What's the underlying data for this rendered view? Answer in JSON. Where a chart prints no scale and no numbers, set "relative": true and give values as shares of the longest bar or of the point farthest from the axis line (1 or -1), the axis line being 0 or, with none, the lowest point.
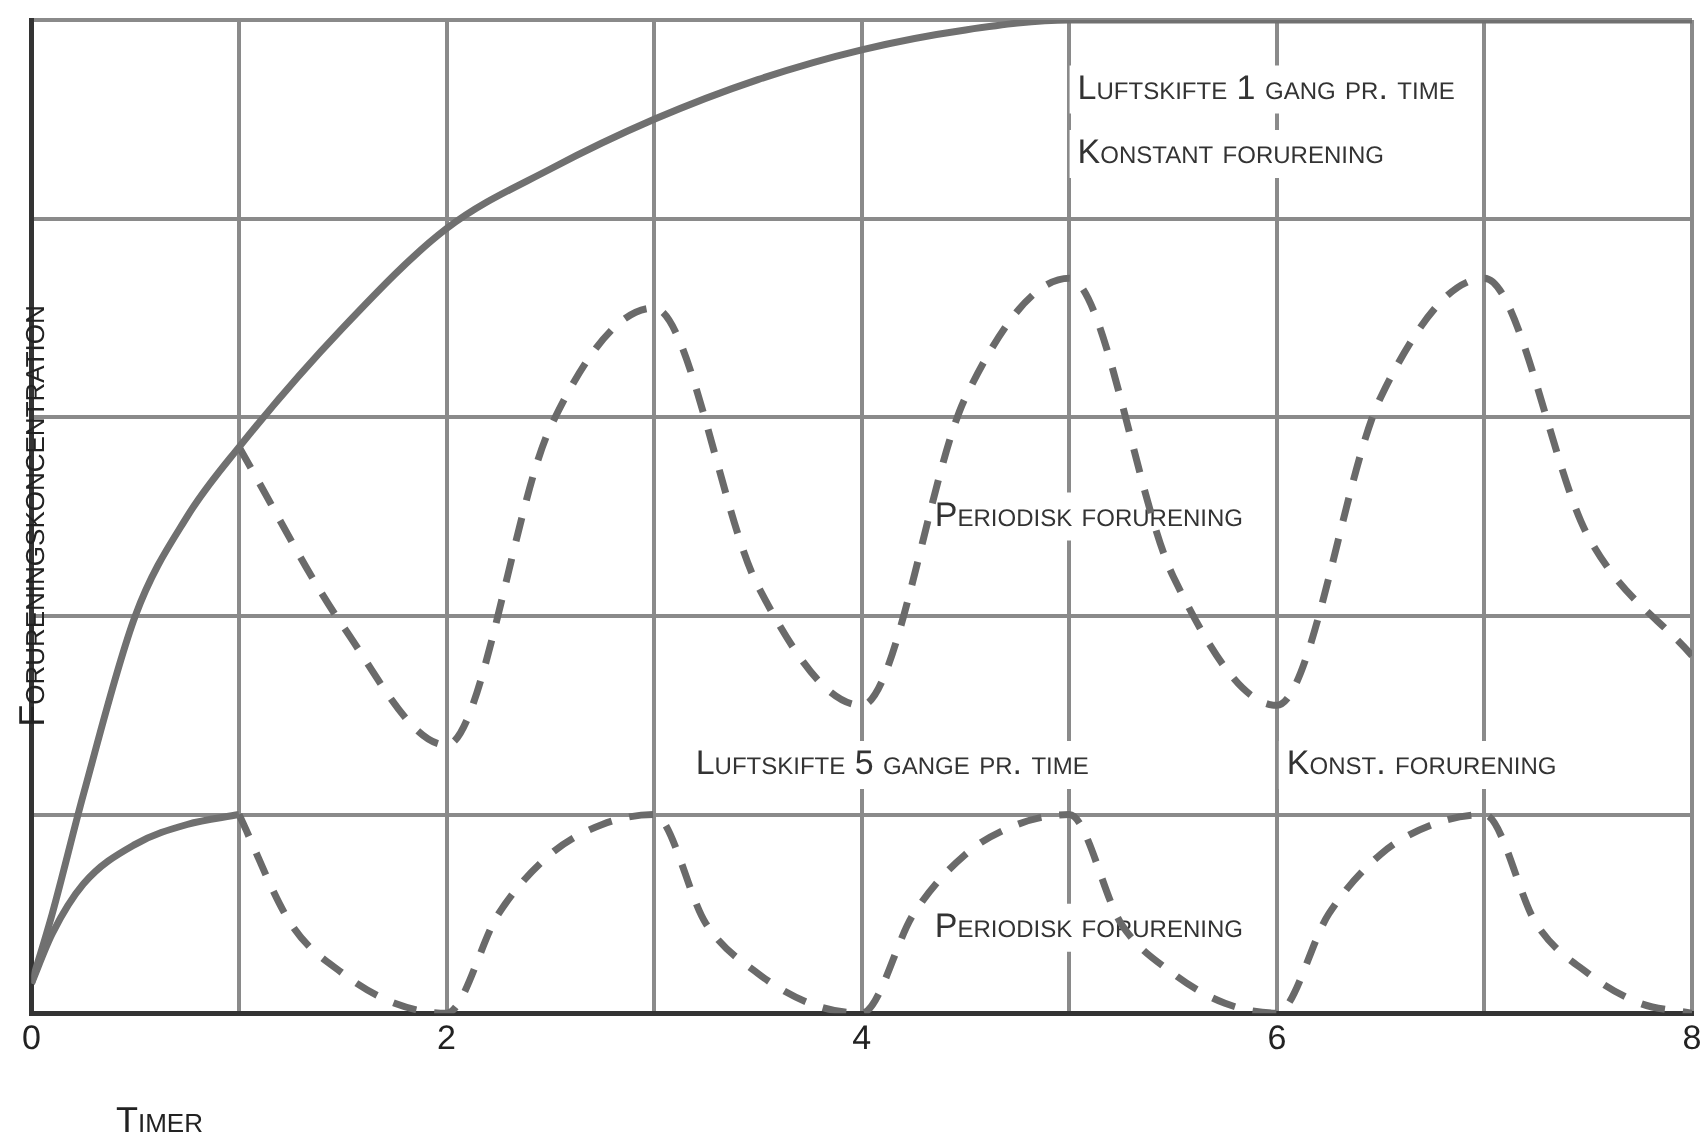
{
  "chart_data": {
    "type": "line",
    "relative": true,
    "xlabel": "Timer",
    "ylabel": "Forureningskoncentration",
    "xlim": [
      0,
      8
    ],
    "xticks": [
      0,
      {
        "value": 1,
        "label": null
      },
      2,
      {
        "value": 3,
        "label": null
      },
      4,
      {
        "value": 5,
        "label": null
      },
      6,
      {
        "value": 7,
        "label": null
      },
      8
    ],
    "grid": true,
    "legend": false,
    "marker": "none",
    "series": [
      {
        "color": "#707070",
        "line_style": "solid",
        "x": [
          0,
          0.1,
          0.25,
          0.5,
          0.75,
          1,
          1.5,
          2,
          2.5,
          3,
          3.5,
          4,
          4.5,
          5,
          6,
          7,
          8
        ],
        "values": [
          0.03,
          0.1,
          0.22,
          0.4,
          0.5,
          0.57,
          0.69,
          0.79,
          0.85,
          0.9,
          0.94,
          0.97,
          0.99,
          1,
          1,
          1,
          1
        ]
      },
      {
        "color": "#6a6a6a",
        "line_style": "dashed",
        "x": [
          1,
          1.5,
          2,
          2.5,
          3,
          3.5,
          4,
          4.5,
          5,
          5.5,
          6,
          6.5,
          7,
          7.5,
          8
        ],
        "values": [
          0.57,
          0.39,
          0.27,
          0.59,
          0.71,
          0.43,
          0.31,
          0.62,
          0.74,
          0.44,
          0.31,
          0.62,
          0.74,
          0.48,
          0.36
        ]
      },
      {
        "color": "#707070",
        "line_style": "solid",
        "x": [
          0,
          0.1,
          0.25,
          0.5,
          0.75,
          1
        ],
        "values": [
          0.03,
          0.08,
          0.13,
          0.17,
          0.19,
          0.2
        ]
      },
      {
        "color": "#6a6a6a",
        "line_style": "dashed",
        "x": [
          1,
          1.25,
          1.5,
          1.75,
          2,
          2.25,
          2.5,
          2.75,
          3,
          3.25,
          3.5,
          3.75,
          4,
          4.25,
          4.5,
          4.75,
          5,
          5.25,
          5.5,
          5.75,
          6,
          6.25,
          6.5,
          6.75,
          7,
          7.25,
          7.5,
          7.75,
          8
        ],
        "values": [
          0.2,
          0.09,
          0.04,
          0.01,
          0,
          0.1,
          0.16,
          0.19,
          0.2,
          0.09,
          0.04,
          0.01,
          0,
          0.1,
          0.16,
          0.19,
          0.2,
          0.09,
          0.04,
          0.01,
          0,
          0.1,
          0.16,
          0.19,
          0.2,
          0.09,
          0.04,
          0.01,
          0
        ]
      }
    ],
    "annotations": [
      "Luftskifte 1 gang pr. time",
      "Konstant forurening",
      "Periodisk forurening",
      "Luftskifte 5 gange pr. time",
      "Konst. forurening",
      "Periodisk forurening"
    ]
  }
}
